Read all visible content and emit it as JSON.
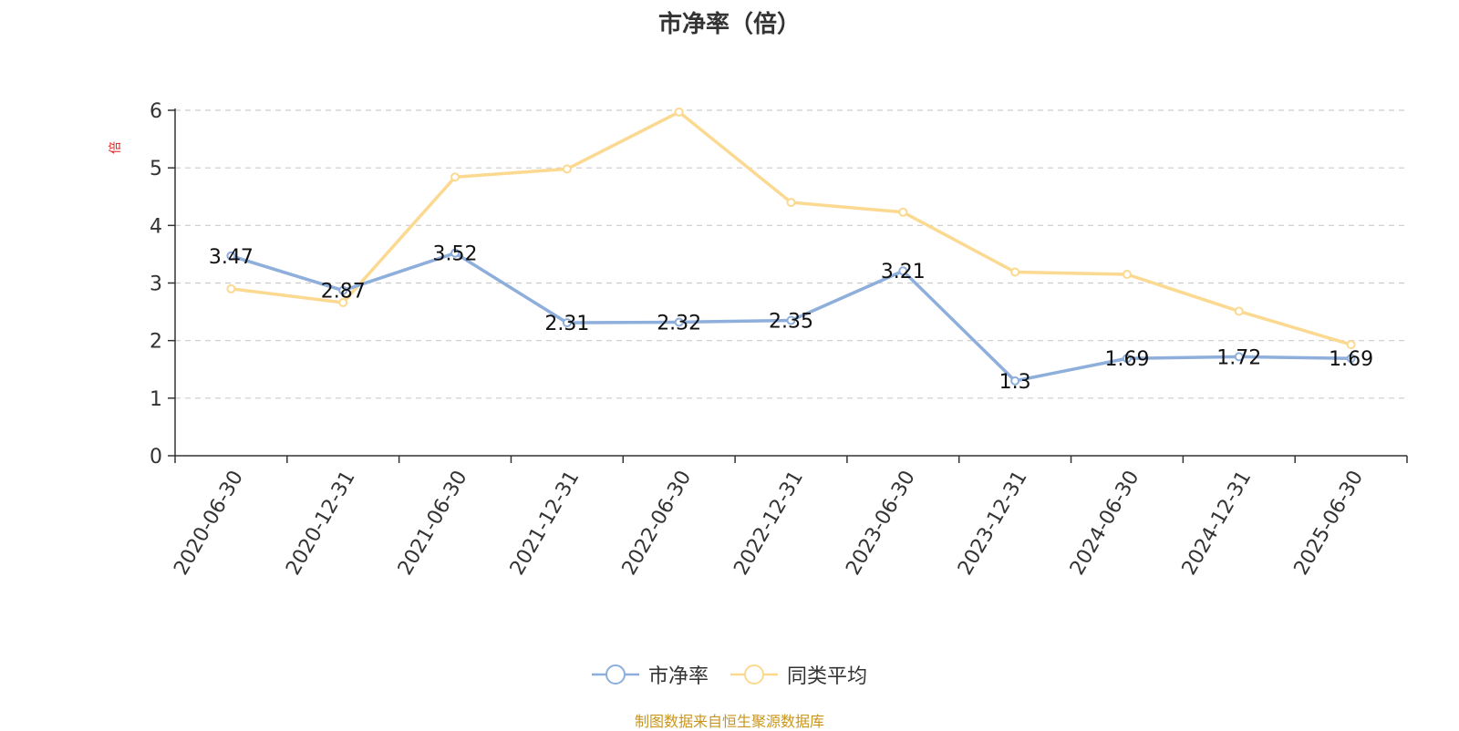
{
  "chart_data": {
    "type": "line",
    "title": "市净率（倍）",
    "ylabel": "倍",
    "xlabel": "",
    "ylim": [
      0,
      6
    ],
    "yticks": [
      0,
      1,
      2,
      3,
      4,
      5,
      6
    ],
    "grid": true,
    "legend_position": "bottom",
    "categories": [
      "2020-06-30",
      "2020-12-31",
      "2021-06-30",
      "2021-12-31",
      "2022-06-30",
      "2022-12-31",
      "2023-06-30",
      "2023-12-31",
      "2024-06-30",
      "2024-12-31",
      "2025-06-30"
    ],
    "series": [
      {
        "name": "市净率",
        "color": "#8eaedc",
        "values": [
          3.47,
          2.87,
          3.52,
          2.31,
          2.32,
          2.35,
          3.21,
          1.3,
          1.69,
          1.72,
          1.69
        ],
        "labels": [
          "3.47",
          "2.87",
          "3.52",
          "2.31",
          "2.32",
          "2.35",
          "3.21",
          "1.3",
          "1.69",
          "1.72",
          "1.69"
        ]
      },
      {
        "name": "同类平均",
        "color": "#fbd990",
        "values": [
          2.9,
          2.66,
          4.84,
          4.98,
          5.97,
          4.4,
          4.23,
          3.19,
          3.15,
          2.51,
          1.93
        ]
      }
    ]
  },
  "source_note": "制图数据来自恒生聚源数据库"
}
